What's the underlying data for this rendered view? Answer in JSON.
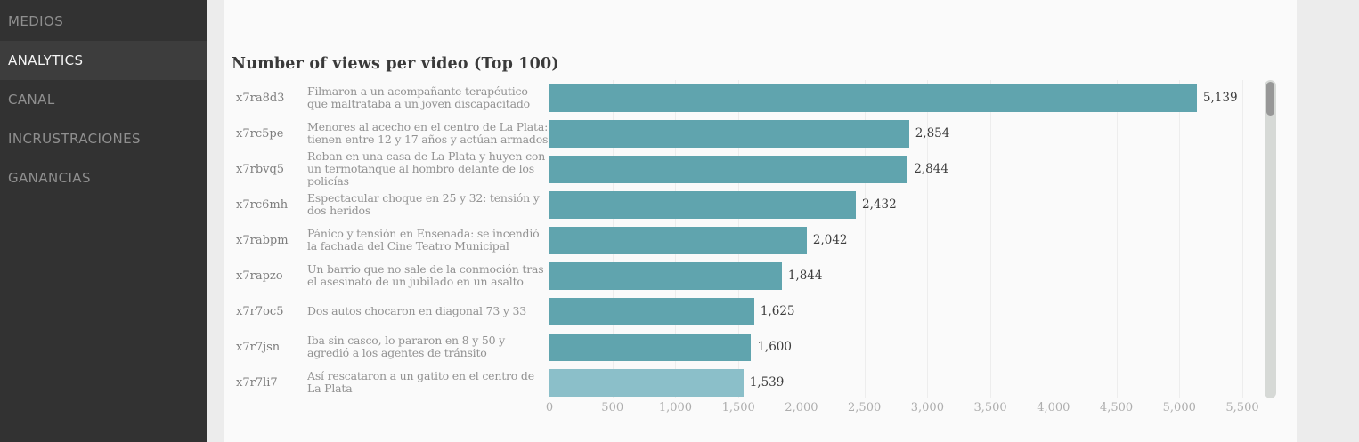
{
  "sidebar": {
    "items": [
      {
        "label": "MEDIOS",
        "active": false
      },
      {
        "label": "ANALYTICS",
        "active": true
      },
      {
        "label": "CANAL",
        "active": false
      },
      {
        "label": "INCRUSTRACIONES",
        "active": false
      },
      {
        "label": "GANANCIAS",
        "active": false
      }
    ]
  },
  "main": {
    "title": "Number of views per video (Top 100)"
  },
  "colors": {
    "bar_default": "#60a4ae",
    "bar_light": "#8bbfc9",
    "sidebar_bg": "#323232",
    "sidebar_active_bg": "#3d3d3d",
    "panel_bg": "#fafafa"
  },
  "chart_data": {
    "type": "bar",
    "orientation": "horizontal",
    "title": "Number of views per video (Top 100)",
    "categories": [
      "x7ra8d3",
      "x7rc5pe",
      "x7rbvq5",
      "x7rc6mh",
      "x7rabpm",
      "x7rapzo",
      "x7r7oc5",
      "x7r7jsn",
      "x7r7li7"
    ],
    "row_labels": [
      "Filmaron a un acompañante terapéutico que maltrataba a un joven discapacitado",
      "Menores al acecho en el centro de La Plata: tienen entre 12 y 17 años y actúan armados",
      "Roban en una casa de La Plata y huyen con un termotanque al hombro delante de los policías",
      "Espectacular choque en 25 y 32: tensión y dos heridos",
      "Pánico y tensión en Ensenada: se incendió la fachada del Cine Teatro Municipal",
      "Un barrio que no sale de la conmoción tras el asesinato de un jubilado en un asalto",
      "Dos autos chocaron en diagonal 73 y 33",
      "Iba sin casco, lo pararon en 8 y 50 y agredió a los agentes de tránsito",
      "Así rescataron a un gatito en el centro de La Plata"
    ],
    "values": [
      5139,
      2854,
      2844,
      2432,
      2042,
      1844,
      1625,
      1600,
      1539
    ],
    "value_labels": [
      "5,139",
      "2,854",
      "2,844",
      "2,432",
      "2,042",
      "1,844",
      "1,625",
      "1,600",
      "1,539"
    ],
    "bar_colors": [
      "#60a4ae",
      "#60a4ae",
      "#60a4ae",
      "#60a4ae",
      "#60a4ae",
      "#60a4ae",
      "#60a4ae",
      "#60a4ae",
      "#8bbfc9"
    ],
    "xlim": [
      0,
      5500
    ],
    "x_ticks": [
      0,
      500,
      1000,
      1500,
      2000,
      2500,
      3000,
      3500,
      4000,
      4500,
      5000,
      5500
    ],
    "x_tick_labels": [
      "0",
      "500",
      "1,000",
      "1,500",
      "2,000",
      "2,500",
      "3,000",
      "3,500",
      "4,000",
      "4,500",
      "5,000",
      "5,500"
    ],
    "grid": true,
    "legend": false
  }
}
